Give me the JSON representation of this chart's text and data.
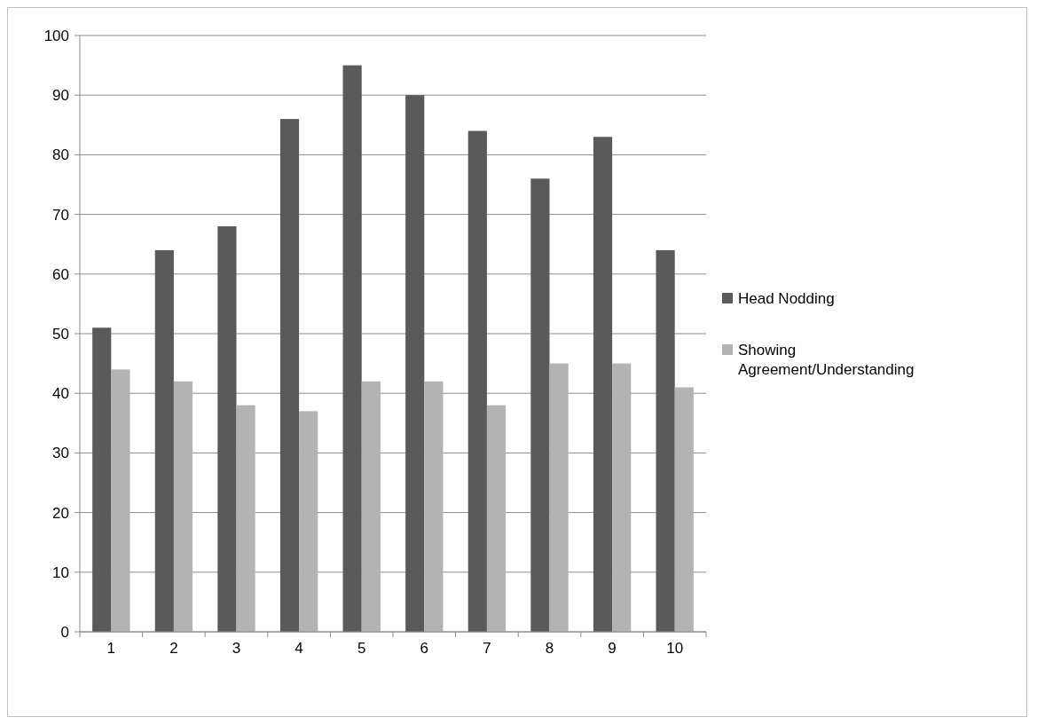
{
  "chart_data": {
    "type": "bar",
    "categories": [
      "1",
      "2",
      "3",
      "4",
      "5",
      "6",
      "7",
      "8",
      "9",
      "10"
    ],
    "series": [
      {
        "name": "Head Nodding",
        "color": "#5a5a5a",
        "values": [
          51,
          64,
          68,
          86,
          95,
          90,
          84,
          76,
          83,
          64
        ]
      },
      {
        "name": "Showing Agreement/Understanding",
        "color": "#b3b3b3",
        "values": [
          44,
          42,
          38,
          37,
          42,
          42,
          38,
          45,
          45,
          41
        ]
      }
    ],
    "ylim": [
      0,
      100
    ],
    "yticks": [
      0,
      10,
      20,
      30,
      40,
      50,
      60,
      70,
      80,
      90,
      100
    ],
    "grid": "y",
    "legend": "right"
  }
}
